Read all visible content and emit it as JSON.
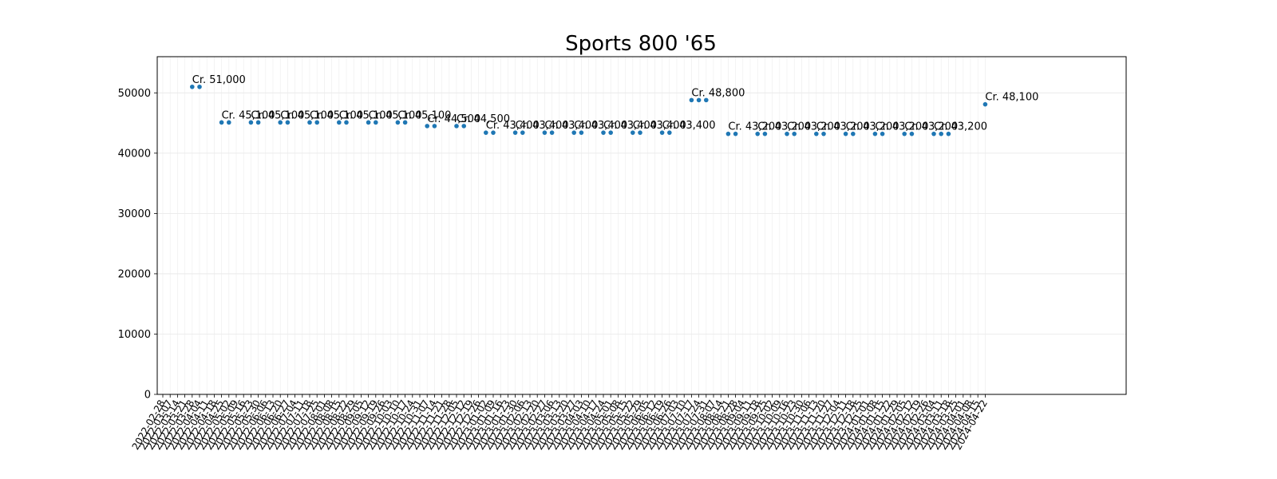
{
  "chart_data": {
    "type": "scatter",
    "title": "Sports 800 '65",
    "xlabel": "",
    "ylabel": "",
    "ylim": [
      0,
      56000
    ],
    "yticks": [
      0,
      10000,
      20000,
      30000,
      40000,
      50000
    ],
    "grid": true,
    "color": "#1f77b4",
    "dates": [
      "2022-02-28",
      "2022-03-07",
      "2022-03-14",
      "2022-03-21",
      "2022-03-28",
      "2022-04-04",
      "2022-04-11",
      "2022-04-18",
      "2022-04-25",
      "2022-05-02",
      "2022-05-09",
      "2022-05-16",
      "2022-05-23",
      "2022-05-30",
      "2022-06-06",
      "2022-06-13",
      "2022-06-20",
      "2022-06-27",
      "2022-07-04",
      "2022-07-11",
      "2022-07-18",
      "2022-07-25",
      "2022-08-01",
      "2022-08-08",
      "2022-08-15",
      "2022-08-22",
      "2022-08-29",
      "2022-09-05",
      "2022-09-12",
      "2022-09-19",
      "2022-09-26",
      "2022-10-03",
      "2022-10-10",
      "2022-10-17",
      "2022-10-24",
      "2022-10-31",
      "2022-11-07",
      "2022-11-14",
      "2022-11-21",
      "2022-11-28",
      "2022-12-05",
      "2022-12-12",
      "2022-12-19",
      "2022-12-26",
      "2023-01-02",
      "2023-01-09",
      "2023-01-16",
      "2023-01-23",
      "2023-01-30",
      "2023-02-06",
      "2023-02-13",
      "2023-02-20",
      "2023-02-27",
      "2023-03-06",
      "2023-03-13",
      "2023-03-20",
      "2023-03-27",
      "2023-04-03",
      "2023-04-10",
      "2023-04-17",
      "2023-04-24",
      "2023-05-01",
      "2023-05-08",
      "2023-05-15",
      "2023-05-22",
      "2023-05-29",
      "2023-06-05",
      "2023-06-12",
      "2023-06-19",
      "2023-06-26",
      "2023-07-03",
      "2023-07-10",
      "2023-07-17",
      "2023-07-24",
      "2023-07-31",
      "2023-08-07",
      "2023-08-14",
      "2023-08-21",
      "2023-08-28",
      "2023-09-04",
      "2023-09-11",
      "2023-09-18",
      "2023-09-25",
      "2023-10-02",
      "2023-10-09",
      "2023-10-16",
      "2023-10-23",
      "2023-10-30",
      "2023-11-06",
      "2023-11-13",
      "2023-11-20",
      "2023-11-27",
      "2023-12-04",
      "2023-12-11",
      "2023-12-18",
      "2023-12-25",
      "2024-01-01",
      "2024-01-08",
      "2024-01-15",
      "2024-01-22",
      "2024-01-29",
      "2024-02-05",
      "2024-02-12",
      "2024-02-19",
      "2024-02-26",
      "2024-03-04",
      "2024-03-11",
      "2024-03-18",
      "2024-03-25",
      "2024-04-01",
      "2024-04-08",
      "2024-04-15",
      "2024-04-22"
    ],
    "points": [
      {
        "x": "2022-03-28",
        "y": 51000
      },
      {
        "x": "2022-04-04",
        "y": 51000
      },
      {
        "x": "2022-04-25",
        "y": 45100
      },
      {
        "x": "2022-05-02",
        "y": 45100
      },
      {
        "x": "2022-05-23",
        "y": 45100
      },
      {
        "x": "2022-05-30",
        "y": 45100
      },
      {
        "x": "2022-06-20",
        "y": 45100
      },
      {
        "x": "2022-06-27",
        "y": 45100
      },
      {
        "x": "2022-07-18",
        "y": 45100
      },
      {
        "x": "2022-07-25",
        "y": 45100
      },
      {
        "x": "2022-08-15",
        "y": 45100
      },
      {
        "x": "2022-08-22",
        "y": 45100
      },
      {
        "x": "2022-09-12",
        "y": 45100
      },
      {
        "x": "2022-09-19",
        "y": 45100
      },
      {
        "x": "2022-10-10",
        "y": 45100
      },
      {
        "x": "2022-10-17",
        "y": 45100
      },
      {
        "x": "2022-11-07",
        "y": 44500
      },
      {
        "x": "2022-11-14",
        "y": 44500
      },
      {
        "x": "2022-12-05",
        "y": 44500
      },
      {
        "x": "2022-12-12",
        "y": 44500
      },
      {
        "x": "2023-01-02",
        "y": 43400
      },
      {
        "x": "2023-01-09",
        "y": 43400
      },
      {
        "x": "2023-01-30",
        "y": 43400
      },
      {
        "x": "2023-02-06",
        "y": 43400
      },
      {
        "x": "2023-02-27",
        "y": 43400
      },
      {
        "x": "2023-03-06",
        "y": 43400
      },
      {
        "x": "2023-03-27",
        "y": 43400
      },
      {
        "x": "2023-04-03",
        "y": 43400
      },
      {
        "x": "2023-04-24",
        "y": 43400
      },
      {
        "x": "2023-05-01",
        "y": 43400
      },
      {
        "x": "2023-05-22",
        "y": 43400
      },
      {
        "x": "2023-05-29",
        "y": 43400
      },
      {
        "x": "2023-06-19",
        "y": 43400
      },
      {
        "x": "2023-06-26",
        "y": 43400
      },
      {
        "x": "2023-07-17",
        "y": 48800
      },
      {
        "x": "2023-07-24",
        "y": 48800
      },
      {
        "x": "2023-07-31",
        "y": 48800
      },
      {
        "x": "2023-08-21",
        "y": 43200
      },
      {
        "x": "2023-08-28",
        "y": 43200
      },
      {
        "x": "2023-09-18",
        "y": 43200
      },
      {
        "x": "2023-09-25",
        "y": 43200
      },
      {
        "x": "2023-10-16",
        "y": 43200
      },
      {
        "x": "2023-10-23",
        "y": 43200
      },
      {
        "x": "2023-11-13",
        "y": 43200
      },
      {
        "x": "2023-11-20",
        "y": 43200
      },
      {
        "x": "2023-12-11",
        "y": 43200
      },
      {
        "x": "2023-12-18",
        "y": 43200
      },
      {
        "x": "2024-01-08",
        "y": 43200
      },
      {
        "x": "2024-01-15",
        "y": 43200
      },
      {
        "x": "2024-02-05",
        "y": 43200
      },
      {
        "x": "2024-02-12",
        "y": 43200
      },
      {
        "x": "2024-03-04",
        "y": 43200
      },
      {
        "x": "2024-03-11",
        "y": 43200
      },
      {
        "x": "2024-03-18",
        "y": 43200
      },
      {
        "x": "2024-04-22",
        "y": 48100
      }
    ],
    "annotations": [
      {
        "x": "2022-03-28",
        "y": 51000,
        "text": "Cr. 51,000"
      },
      {
        "x": "2022-04-25",
        "y": 45100,
        "text": "Cr. 45,100"
      },
      {
        "x": "2022-05-23",
        "y": 45100,
        "text": "Cr. 45,100"
      },
      {
        "x": "2022-06-20",
        "y": 45100,
        "text": "Cr. 45,100"
      },
      {
        "x": "2022-07-18",
        "y": 45100,
        "text": "Cr. 45,100"
      },
      {
        "x": "2022-08-15",
        "y": 45100,
        "text": "Cr. 45,100"
      },
      {
        "x": "2022-09-12",
        "y": 45100,
        "text": "Cr. 45,100"
      },
      {
        "x": "2022-10-10",
        "y": 45100,
        "text": "Cr. 45,100"
      },
      {
        "x": "2022-11-07",
        "y": 44500,
        "text": "Cr. 44,500"
      },
      {
        "x": "2022-12-05",
        "y": 44500,
        "text": "Cr. 44,500"
      },
      {
        "x": "2023-01-02",
        "y": 43400,
        "text": "Cr. 43,400"
      },
      {
        "x": "2023-01-30",
        "y": 43400,
        "text": "Cr. 43,400"
      },
      {
        "x": "2023-02-27",
        "y": 43400,
        "text": "Cr. 43,400"
      },
      {
        "x": "2023-03-27",
        "y": 43400,
        "text": "Cr. 43,400"
      },
      {
        "x": "2023-04-24",
        "y": 43400,
        "text": "Cr. 43,400"
      },
      {
        "x": "2023-05-22",
        "y": 43400,
        "text": "Cr. 43,400"
      },
      {
        "x": "2023-06-19",
        "y": 43400,
        "text": "Cr. 43,400"
      },
      {
        "x": "2023-07-17",
        "y": 48800,
        "text": "Cr. 48,800"
      },
      {
        "x": "2023-08-21",
        "y": 43200,
        "text": "Cr. 43,200"
      },
      {
        "x": "2023-09-18",
        "y": 43200,
        "text": "Cr. 43,200"
      },
      {
        "x": "2023-10-16",
        "y": 43200,
        "text": "Cr. 43,200"
      },
      {
        "x": "2023-11-13",
        "y": 43200,
        "text": "Cr. 43,200"
      },
      {
        "x": "2023-12-11",
        "y": 43200,
        "text": "Cr. 43,200"
      },
      {
        "x": "2024-01-08",
        "y": 43200,
        "text": "Cr. 43,200"
      },
      {
        "x": "2024-02-05",
        "y": 43200,
        "text": "Cr. 43,200"
      },
      {
        "x": "2024-03-04",
        "y": 43200,
        "text": "Cr. 43,200"
      },
      {
        "x": "2024-04-22",
        "y": 48100,
        "text": "Cr. 48,100"
      }
    ]
  }
}
